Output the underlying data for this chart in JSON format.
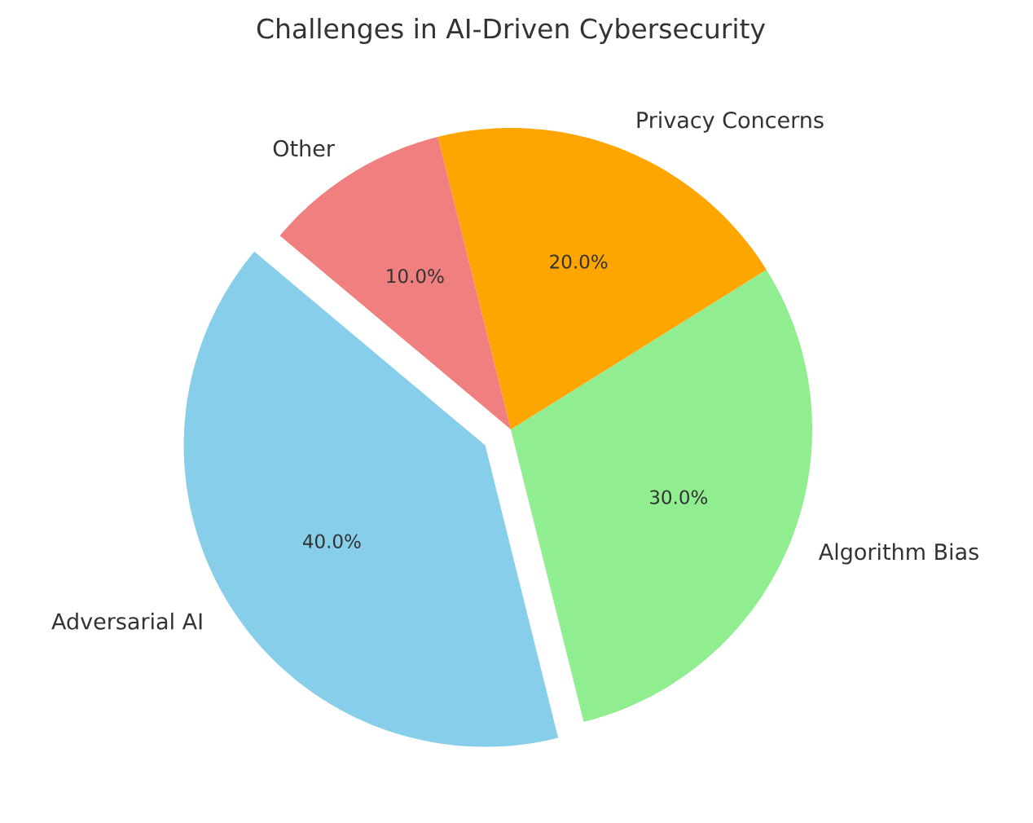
{
  "chart_data": {
    "type": "pie",
    "title": "Challenges in AI-Driven Cybersecurity",
    "categories": [
      "Adversarial AI",
      "Algorithm Bias",
      "Privacy Concerns",
      "Other"
    ],
    "values": [
      40,
      30,
      20,
      10
    ],
    "colors": [
      "#87ceeb",
      "#90ee90",
      "#ffa500",
      "#f08080"
    ],
    "value_labels": [
      "40.0%",
      "30.0%",
      "20.0%",
      "10.0%"
    ]
  }
}
